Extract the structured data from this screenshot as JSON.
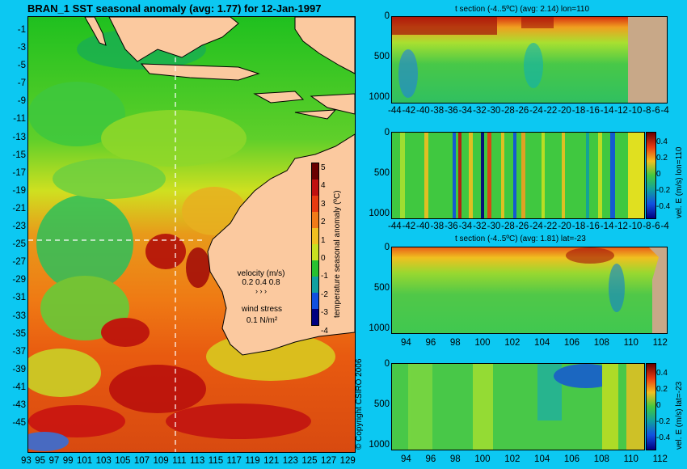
{
  "map": {
    "title": "BRAN_1  SST seasonal anomaly (avg: 1.77) for 12-Jan-1997",
    "lat_ticks": [
      "-1",
      "-3",
      "-5",
      "-7",
      "-9",
      "-11",
      "-13",
      "-15",
      "-17",
      "-19",
      "-21",
      "-23",
      "-25",
      "-27",
      "-29",
      "-31",
      "-33",
      "-35",
      "-37",
      "-39",
      "-41",
      "-43",
      "-45"
    ],
    "lon_ticks": [
      "93",
      "95",
      "97",
      "99",
      "101",
      "103",
      "105",
      "107",
      "109",
      "111",
      "113",
      "115",
      "117",
      "119",
      "121",
      "123",
      "125",
      "127",
      "129"
    ],
    "colorbar_ticks": [
      "5",
      "4",
      "3",
      "2",
      "1",
      "0",
      "-1",
      "-2",
      "-3",
      "-4"
    ],
    "colorbar_label": "temperature seasonal anomaly (ºC)",
    "velocity_label": "velocity (m/s)",
    "velocity_scale": "0.2 0.4 0.8",
    "wind_label": "wind stress",
    "wind_scale": "0.1 N/m²",
    "copyright": "© Copyright CSIRO 2006",
    "colors": {
      "land": "#fbc99f",
      "ocean_bg": "#38c838",
      "accent": "#0cc8f2"
    }
  },
  "sections": [
    {
      "title": "t section (-4..5ºC) (avg: 2.14) lon=110",
      "y_ticks": [
        "0",
        "500",
        "1000"
      ],
      "x_ticks": [
        "-44",
        "-42",
        "-40",
        "-38",
        "-36",
        "-34",
        "-32",
        "-30",
        "-28",
        "-26",
        "-24",
        "-22",
        "-20",
        "-18",
        "-16",
        "-14",
        "-12",
        "-10",
        "-8",
        "-6",
        "-4"
      ],
      "colorbar": false
    },
    {
      "title": "",
      "y_ticks": [
        "0",
        "500",
        "1000"
      ],
      "x_ticks": [
        "-44",
        "-42",
        "-40",
        "-38",
        "-36",
        "-34",
        "-32",
        "-30",
        "-28",
        "-26",
        "-24",
        "-22",
        "-20",
        "-18",
        "-16",
        "-14",
        "-12",
        "-10",
        "-8",
        "-6",
        "-4"
      ],
      "colorbar": true,
      "cb_ticks": [
        "0.4",
        "0.2",
        "0",
        "-0.2",
        "-0.4"
      ],
      "cb_label": "vel. E (m/s) lon=110"
    },
    {
      "title": "t section (-4..5ºC) (avg: 1.81) lat=-23",
      "y_ticks": [
        "0",
        "500",
        "1000"
      ],
      "x_ticks": [
        "94",
        "96",
        "98",
        "100",
        "102",
        "104",
        "106",
        "108",
        "110",
        "112"
      ],
      "colorbar": false
    },
    {
      "title": "",
      "y_ticks": [
        "0",
        "500",
        "1000"
      ],
      "x_ticks": [
        "94",
        "96",
        "98",
        "100",
        "102",
        "104",
        "106",
        "108",
        "110",
        "112"
      ],
      "colorbar": true,
      "cb_ticks": [
        "0.4",
        "0.2",
        "0",
        "-0.2",
        "-0.4"
      ],
      "cb_label": "vel. E (m/s) lat=-23"
    }
  ],
  "chart_data": [
    {
      "type": "heatmap",
      "title": "BRAN_1  SST seasonal anomaly (avg: 1.77) for 12-Jan-1997",
      "xlim": [
        93,
        130
      ],
      "ylim": [
        -45,
        0
      ],
      "colorbar_range": [
        -4,
        5
      ]
    },
    {
      "type": "heatmap",
      "title": "t section (-4..5ºC) (avg: 2.14) lon=110",
      "xlim": [
        -45,
        -3
      ],
      "ylim": [
        1050,
        0
      ]
    },
    {
      "type": "heatmap",
      "title": "",
      "xlim": [
        -45,
        -3
      ],
      "ylim": [
        1050,
        0
      ],
      "colorbar_range": [
        -0.4,
        0.4
      ]
    },
    {
      "type": "heatmap",
      "title": "t section (-4..5ºC) (avg: 1.81) lat=-23",
      "xlim": [
        93,
        114
      ],
      "ylim": [
        1050,
        0
      ]
    },
    {
      "type": "heatmap",
      "title": "",
      "xlim": [
        93,
        114
      ],
      "ylim": [
        1050,
        0
      ],
      "colorbar_range": [
        -0.4,
        0.4
      ]
    }
  ]
}
